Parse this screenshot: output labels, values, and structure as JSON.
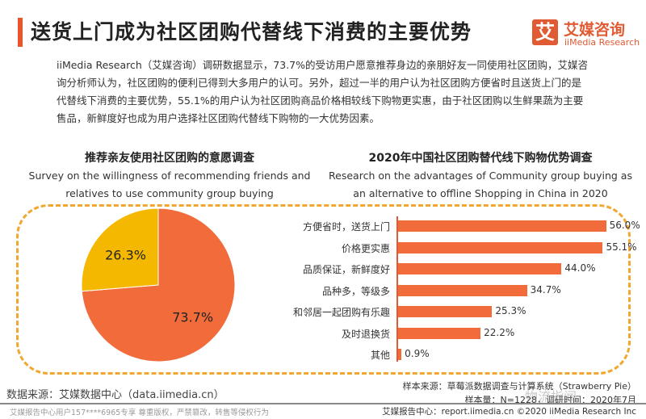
{
  "header": {
    "title": "送货上门成为社区团购代替线下消费的主要优势",
    "logo_icon": "艾",
    "logo_cn": "艾媒咨询",
    "logo_en": "iiMedia Research"
  },
  "intro": "iiMedia Research（艾媒咨询）调研数据显示，73.7%的受访用户愿意推荐身边的亲朋好友一同使用社区团购，艾媒咨询分析师认为，社区团购的便利已得到大多用户的认可。另外，超过一半的用户认为社区团购方便省时且送货上门的是代替线下消费的主要优势，55.1%的用户认为社区团购商品价格相较线下购物更实惠，由于社区团购以生鲜果蔬为主要售品，新鲜度好也成为用户选择社区团购代替线下购物的一大优势因素。",
  "colors": {
    "accent": "#e8542e",
    "bar": "#f26b3a",
    "pie_main": "#f26b3a",
    "pie_minor": "#f5b800",
    "dash": "#f0a830"
  },
  "chart_data": [
    {
      "type": "pie",
      "title": "推荐亲友使用社区团购的意愿调查",
      "subtitle": "Survey on the willingness of recommending friends and relatives to use community group buying",
      "slices": [
        {
          "label": "73.7%",
          "value": 73.7
        },
        {
          "label": "26.3%",
          "value": 26.3
        }
      ]
    },
    {
      "type": "bar",
      "orientation": "horizontal",
      "title": "2020年中国社区团购替代线下购物优势调查",
      "subtitle": "Research on the advantages of Community group buying as an alternative to offline Shopping in China in 2020",
      "categories": [
        "方便省时，送货上门",
        "价格更实惠",
        "品质保证，新鲜度好",
        "品种多，等级多",
        "和邻居一起团购有乐趣",
        "及时退换货",
        "其他"
      ],
      "values": [
        56.0,
        55.1,
        44.0,
        34.7,
        25.3,
        22.2,
        0.9
      ],
      "labels": [
        "56.0%",
        "55.1%",
        "44.0%",
        "34.7%",
        "25.3%",
        "22.2%",
        "0.9%"
      ],
      "unit": "%"
    }
  ],
  "footer": {
    "source": "数据来源：艾媒数据中心（data.iimedia.cn）",
    "sample_source": "样本来源：草莓派数据调查与计算系统（Strawberry Pie）",
    "sample_size": "样本量：N=1228，调研时间：2020年7月",
    "copyright_left": "艾媒报告中心用户157****6965专享 尊重版权，严禁篡改，转售等侵权行为",
    "copyright_right": "艾媒报告中心：report.iimedia.cn  ©2020 iiMedia Research Inc",
    "watermark": "物流指闻"
  }
}
